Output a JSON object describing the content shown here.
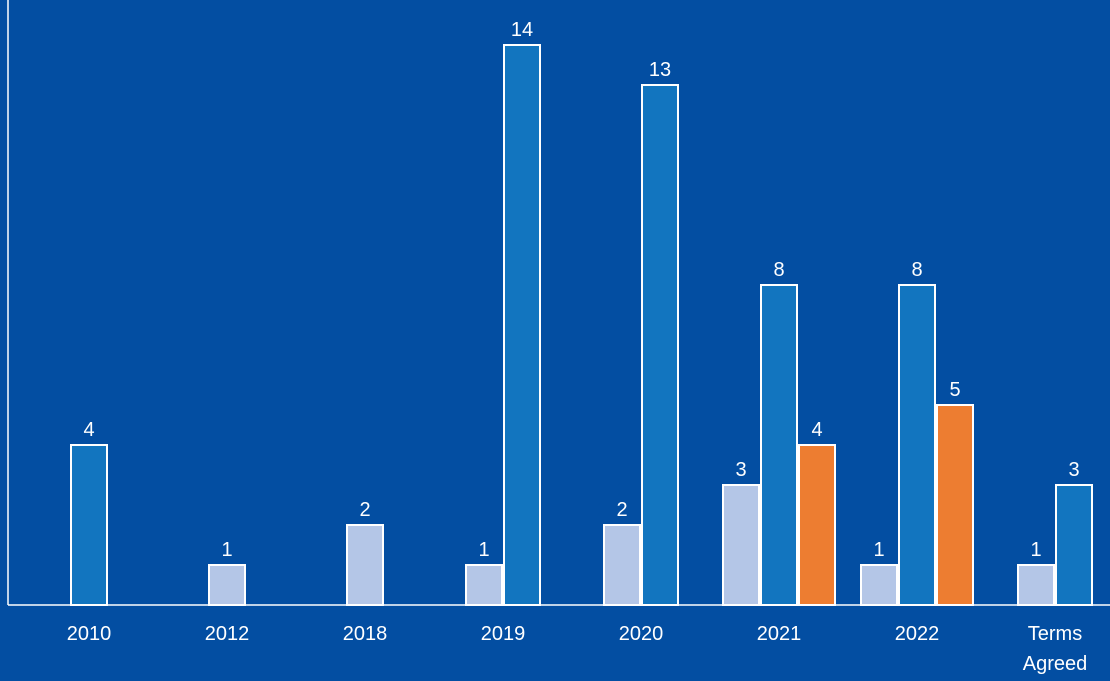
{
  "chart_data": {
    "type": "bar",
    "title": "",
    "xlabel": "",
    "ylabel": "",
    "ylim": [
      0,
      15
    ],
    "grid": false,
    "categories": [
      [
        "2010"
      ],
      [
        "2012"
      ],
      [
        "2018"
      ],
      [
        "2019"
      ],
      [
        "2020"
      ],
      [
        "2021"
      ],
      [
        "2022"
      ],
      [
        "Terms",
        "Agreed"
      ]
    ],
    "series": [
      {
        "color": "#b4c6e7",
        "values": [
          null,
          1,
          2,
          1,
          2,
          3,
          1,
          1
        ]
      },
      {
        "color": "#1275bf",
        "values": [
          4,
          null,
          null,
          14,
          13,
          8,
          8,
          3
        ]
      },
      {
        "color": "#ed7d31",
        "values": [
          null,
          null,
          null,
          null,
          null,
          4,
          5,
          null
        ]
      }
    ],
    "colors": {
      "background": "#034ea2",
      "axis": "#ffffff",
      "text": "#ffffff",
      "bar_outline": "#ffffff"
    }
  }
}
